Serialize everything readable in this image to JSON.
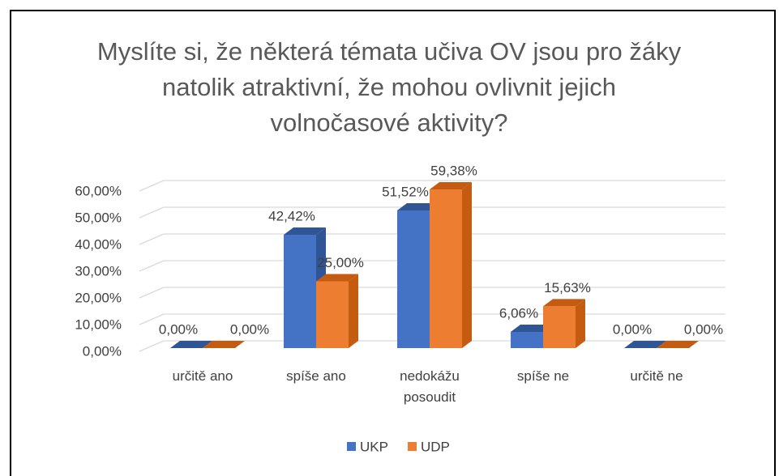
{
  "chart_data": {
    "type": "bar3d",
    "title": "Myslíte si, že některá témata učiva OV jsou pro žáky natolik atraktivní, že mohou ovlivnit jejich volnočasové aktivity?",
    "categories": [
      "určitě ano",
      "spíše ano",
      "nedokážu posoudit",
      "spíše ne",
      "určitě ne"
    ],
    "series": [
      {
        "name": "UKP",
        "color": "#4472c4",
        "side": "#2f5597",
        "values": [
          0,
          42.42,
          51.52,
          6.06,
          0
        ],
        "value_labels": [
          "0,00%",
          "42,42%",
          "51,52%",
          "6,06%",
          "0,00%"
        ]
      },
      {
        "name": "UDP",
        "color": "#ed7d31",
        "side": "#c55a11",
        "values": [
          0,
          25,
          59.38,
          15.63,
          0
        ],
        "value_labels": [
          "0,00%",
          "25,00%",
          "59,38%",
          "15,63%",
          "0,00%"
        ]
      }
    ],
    "ylim": [
      0,
      60
    ],
    "yticks": [
      {
        "value": 0,
        "label": "0,00%"
      },
      {
        "value": 10,
        "label": "10,00%"
      },
      {
        "value": 20,
        "label": "20,00%"
      },
      {
        "value": 30,
        "label": "30,00%"
      },
      {
        "value": 40,
        "label": "40,00%"
      },
      {
        "value": 50,
        "label": "50,00%"
      },
      {
        "value": 60,
        "label": "60,00%"
      }
    ],
    "grid": true,
    "legend": "bottom"
  }
}
